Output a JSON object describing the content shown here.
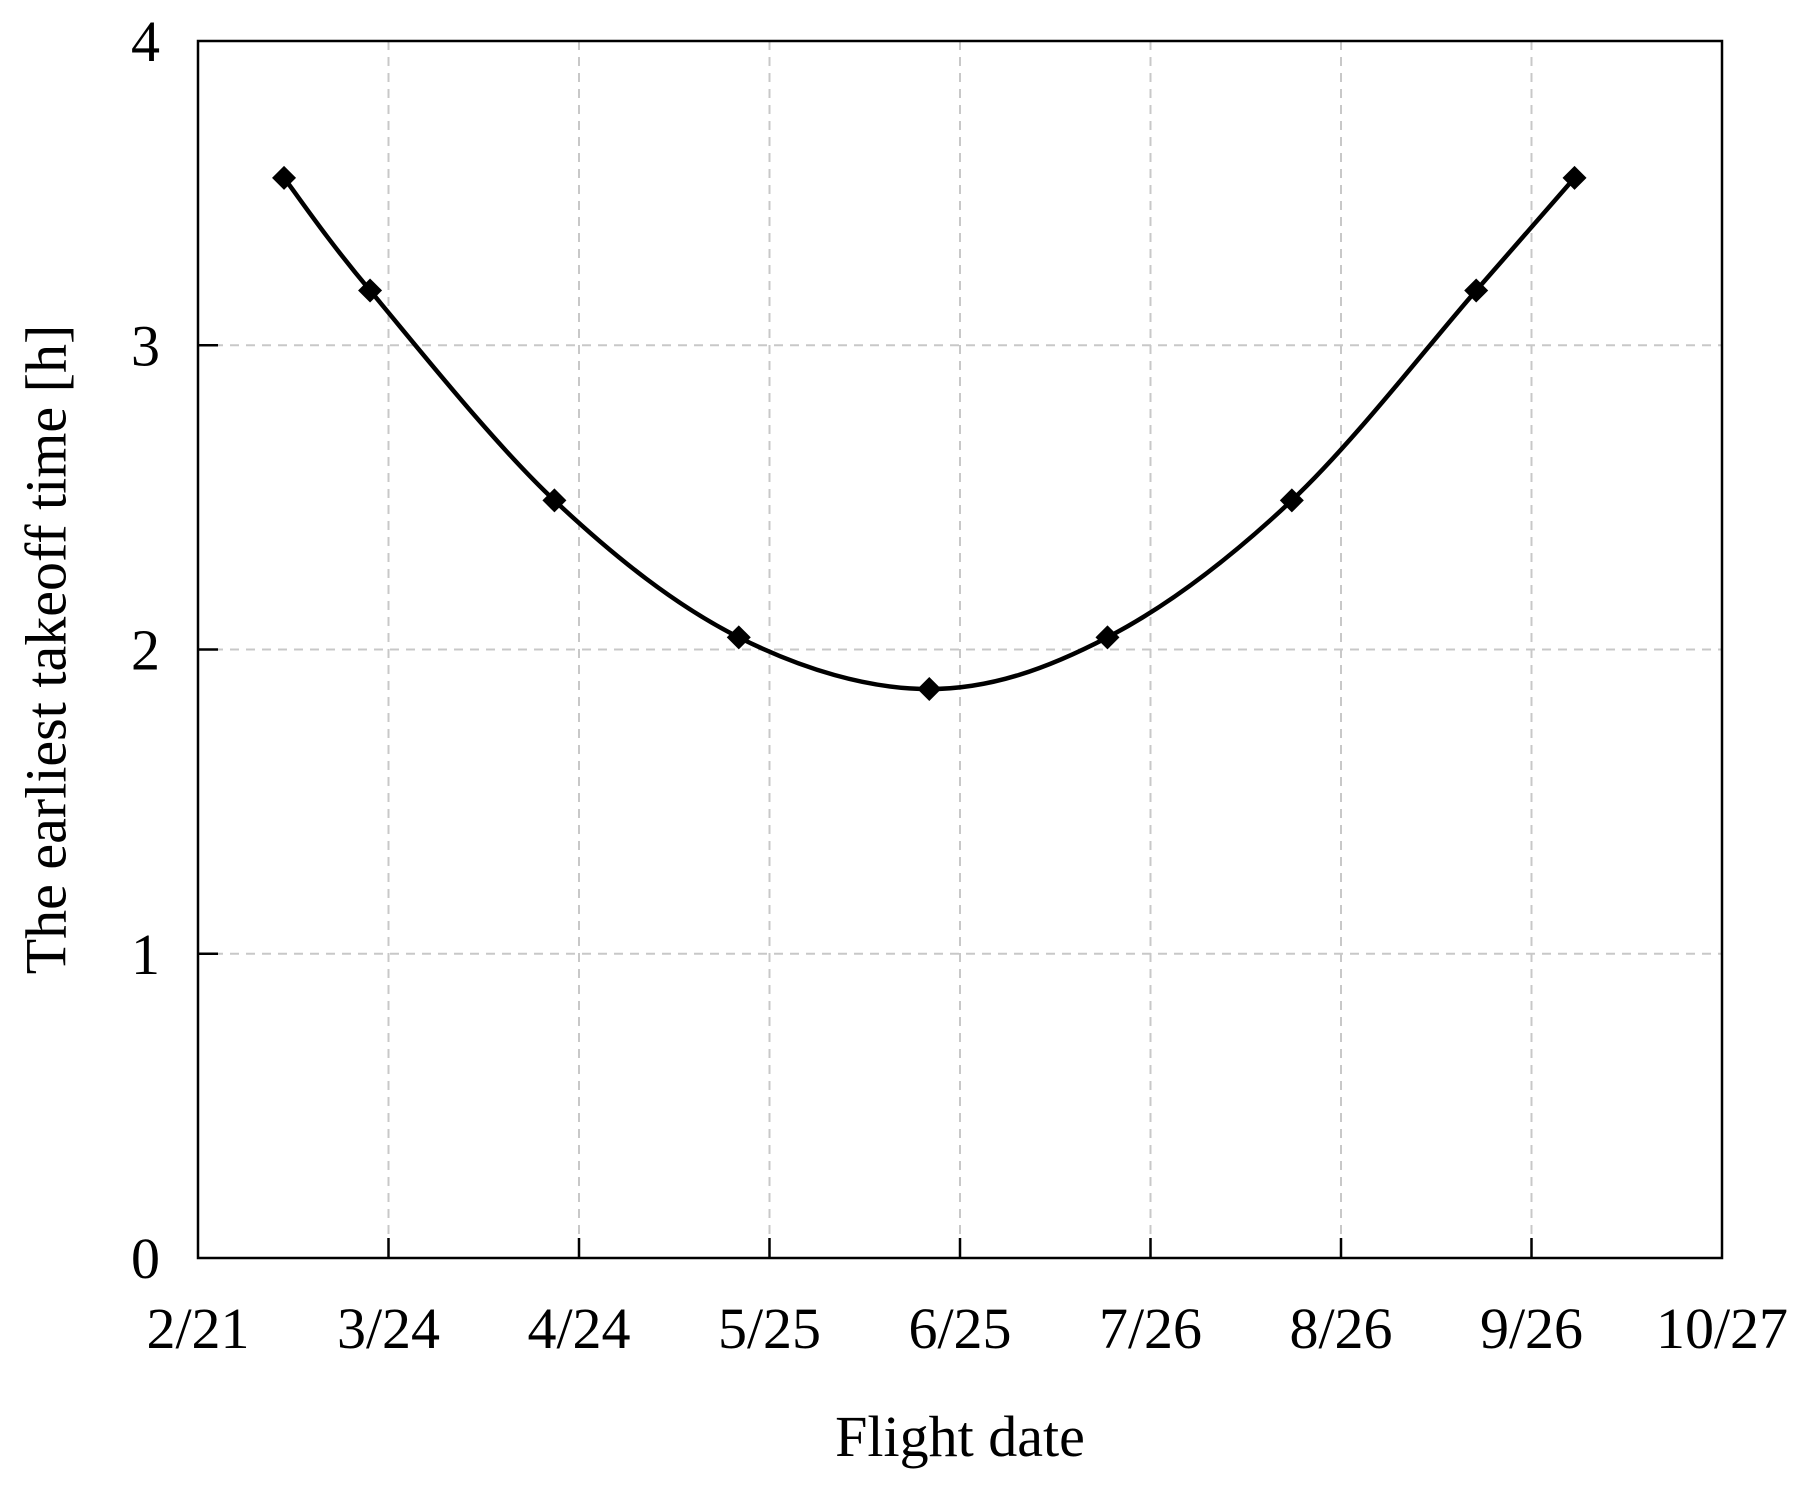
{
  "chart_data": {
    "type": "line",
    "title": "",
    "xlabel": "Flight date",
    "ylabel": "The earliest takeoff time [h]",
    "x_ticks": [
      "2/21",
      "3/24",
      "4/24",
      "5/25",
      "6/25",
      "7/26",
      "8/26",
      "9/26",
      "10/27"
    ],
    "x_tick_values": [
      "2/21",
      "3/24",
      "4/24",
      "5/25",
      "6/25",
      "7/26",
      "8/26",
      "9/26",
      "10/27"
    ],
    "y_ticks": [
      "0",
      "1",
      "2",
      "3",
      "4"
    ],
    "xlim": [
      "2/21",
      "10/27"
    ],
    "ylim": [
      0,
      4
    ],
    "grid": true,
    "series": [
      {
        "x": [
          "3/7",
          "3/21",
          "4/20",
          "5/20",
          "6/20",
          "7/19",
          "8/18",
          "9/17",
          "10/3"
        ],
        "y": [
          3.55,
          3.18,
          2.49,
          2.04,
          1.87,
          2.04,
          2.49,
          3.18,
          3.55
        ],
        "marker": "diamond",
        "color": "#000000"
      }
    ]
  }
}
